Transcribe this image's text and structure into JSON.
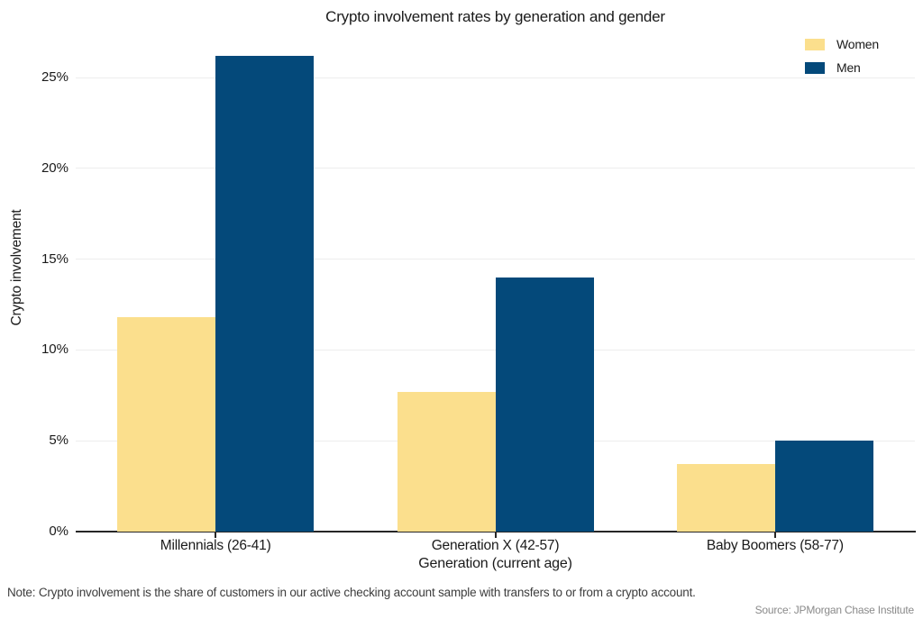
{
  "figure": {
    "note": "Note: Crypto involvement is the share of customers in our active checking account sample with transfers to or from a crypto account.",
    "source": "Source: JPMorgan Chase Institute"
  },
  "chart_data": {
    "type": "bar",
    "title": "Crypto involvement rates by generation and gender",
    "xlabel": "Generation (current age)",
    "ylabel": "Crypto involvement",
    "categories": [
      "Millennials (26-41)",
      "Generation X (42-57)",
      "Baby Boomers (58-77)"
    ],
    "series": [
      {
        "name": "Women",
        "color": "#fbdf8d",
        "values": [
          11.8,
          7.7,
          3.7
        ]
      },
      {
        "name": "Men",
        "color": "#04497a",
        "values": [
          26.2,
          14.0,
          5.0
        ]
      }
    ],
    "ylim": [
      0,
      27.5
    ],
    "yticks": [
      0,
      5,
      10,
      15,
      20,
      25
    ],
    "ytick_labels": [
      "0%",
      "5%",
      "10%",
      "15%",
      "20%",
      "25%"
    ],
    "grid": true,
    "legend_position": "top-right"
  }
}
